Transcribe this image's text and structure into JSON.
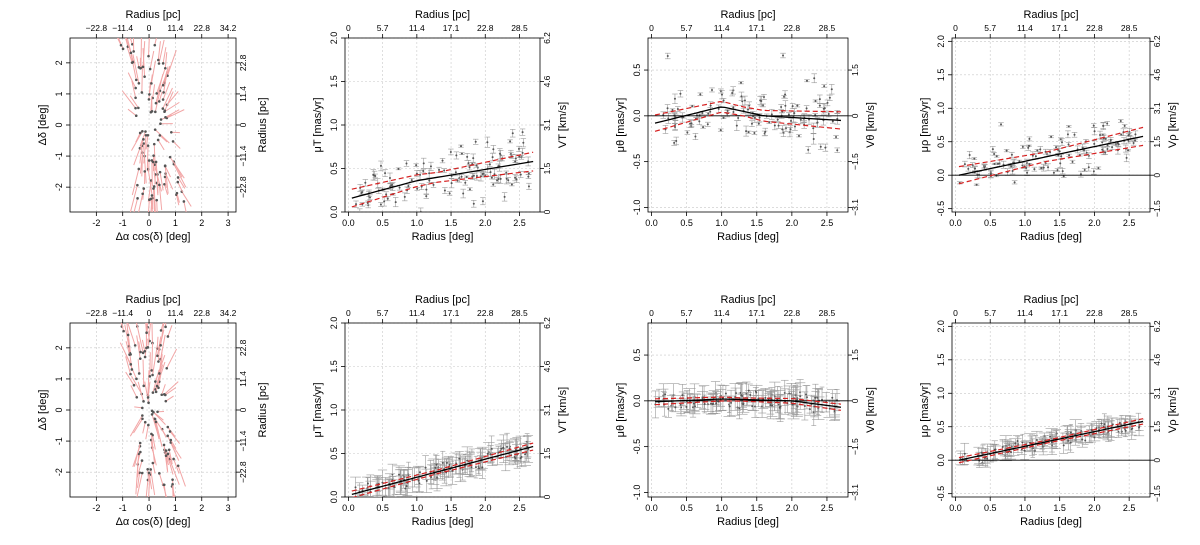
{
  "colors": {
    "arrow": "#f2a6a6",
    "point": "#555555",
    "err": "#999999",
    "fit": "#000000",
    "band": "#d62020",
    "grid": "#c8c8c8"
  },
  "axis_labels": {
    "radius_pc": "Radius [pc]",
    "radius_deg": "Radius [deg]",
    "dra": "Δα cos(δ) [deg]",
    "ddec": "Δδ [deg]",
    "mu_t": "μT [mas/yr]",
    "v_t": "VT [km/s]",
    "mu_theta": "μθ [mas/yr]",
    "v_theta": "Vθ [km/s]",
    "mu_rho": "μρ [mas/yr]",
    "v_rho": "Vρ [km/s]"
  },
  "chart_data": [
    {
      "id": "top-sky",
      "type": "scatter",
      "xlabel": "Δα cos(δ) [deg]",
      "ylabel": "Δδ [deg]",
      "x2label": "Radius [pc]",
      "y2label": "Radius [pc]",
      "xlim": [
        -3,
        3.3
      ],
      "ylim": [
        -2.8,
        2.8
      ],
      "xticks": [
        -2,
        -1,
        0,
        1,
        2,
        3
      ],
      "yticks": [
        -2,
        -1,
        0,
        1,
        2
      ],
      "x2ticks": [
        "−22.8",
        "−11.4",
        "0",
        "11.4",
        "22.8",
        "34.2"
      ],
      "y2ticks": [
        "−22.8",
        "−11.4",
        "0",
        "11.4",
        "22.8"
      ],
      "seed": 7
    },
    {
      "id": "top-mut",
      "type": "scatter",
      "xlabel": "Radius [deg]",
      "ylabel": "μT [mas/yr]",
      "x2label": "Radius [pc]",
      "y2label": "VT [km/s]",
      "xlim": [
        -0.05,
        2.8
      ],
      "ylim": [
        0,
        2.0
      ],
      "xticks": [
        0.0,
        0.5,
        1.0,
        1.5,
        2.0,
        2.5
      ],
      "yticks": [
        0.0,
        0.5,
        1.0,
        1.5,
        2.0
      ],
      "x2ticks": [
        "0",
        "5.7",
        "11.4",
        "17.1",
        "22.8",
        "28.5"
      ],
      "y2ticks": [
        "0",
        "1.5",
        "3.1",
        "4.6",
        "6.2"
      ],
      "fit": [
        [
          0.05,
          0.16
        ],
        [
          1.0,
          0.36
        ],
        [
          2.7,
          0.58
        ]
      ],
      "band": 0.08,
      "hline": null,
      "seed": 11,
      "model": "mut",
      "noisy": true
    },
    {
      "id": "top-mutheta",
      "type": "scatter",
      "xlabel": "Radius [deg]",
      "ylabel": "μθ [mas/yr]",
      "x2label": "Radius [pc]",
      "y2label": "Vθ [km/s]",
      "xlim": [
        -0.05,
        2.8
      ],
      "ylim": [
        -1.05,
        0.85
      ],
      "xticks": [
        0.0,
        0.5,
        1.0,
        1.5,
        2.0,
        2.5
      ],
      "yticks": [
        -1.0,
        -0.5,
        0.0,
        0.5
      ],
      "x2ticks": [
        "0",
        "5.7",
        "11.4",
        "17.1",
        "22.8",
        "28.5"
      ],
      "y2ticks": [
        "−3.1",
        "−1.5",
        "0",
        "1.5"
      ],
      "fit": [
        [
          0.05,
          -0.08
        ],
        [
          1.0,
          0.1
        ],
        [
          1.6,
          0.0
        ],
        [
          2.7,
          -0.05
        ]
      ],
      "band": 0.07,
      "hline": 0,
      "seed": 23,
      "model": "mutheta",
      "noisy": true
    },
    {
      "id": "top-murho",
      "type": "scatter",
      "xlabel": "Radius [deg]",
      "ylabel": "μρ [mas/yr]",
      "x2label": "Radius [pc]",
      "y2label": "Vρ [km/s]",
      "xlim": [
        -0.05,
        2.8
      ],
      "ylim": [
        -0.55,
        2.05
      ],
      "xticks": [
        0.0,
        0.5,
        1.0,
        1.5,
        2.0,
        2.5
      ],
      "yticks": [
        -0.5,
        0.0,
        0.5,
        1.0,
        1.5,
        2.0
      ],
      "x2ticks": [
        "0",
        "5.7",
        "11.4",
        "17.1",
        "22.8",
        "28.5"
      ],
      "y2ticks": [
        "−1.5",
        "0",
        "1.5",
        "3.1",
        "4.6",
        "6.2"
      ],
      "fit": [
        [
          0.05,
          0.0
        ],
        [
          2.7,
          0.58
        ]
      ],
      "band": 0.1,
      "hline": 0,
      "seed": 37,
      "model": "murho",
      "noisy": true
    },
    {
      "id": "bot-sky",
      "type": "scatter",
      "xlabel": "Δα cos(δ) [deg]",
      "ylabel": "Δδ [deg]",
      "x2label": "Radius [pc]",
      "y2label": "Radius [pc]",
      "xlim": [
        -3,
        3.3
      ],
      "ylim": [
        -2.8,
        2.8
      ],
      "xticks": [
        -2,
        -1,
        0,
        1,
        2,
        3
      ],
      "yticks": [
        -2,
        -1,
        0,
        1,
        2
      ],
      "x2ticks": [
        "−22.8",
        "−11.4",
        "0",
        "11.4",
        "22.8",
        "34.2"
      ],
      "y2ticks": [
        "−22.8",
        "−11.4",
        "0",
        "11.4",
        "22.8"
      ],
      "seed": 53
    },
    {
      "id": "bot-mut",
      "type": "scatter",
      "xlabel": "Radius [deg]",
      "ylabel": "μT [mas/yr]",
      "x2label": "Radius [pc]",
      "y2label": "VT [km/s]",
      "xlim": [
        -0.05,
        2.8
      ],
      "ylim": [
        0,
        2.0
      ],
      "xticks": [
        0.0,
        0.5,
        1.0,
        1.5,
        2.0,
        2.5
      ],
      "yticks": [
        0.0,
        0.5,
        1.0,
        1.5,
        2.0
      ],
      "x2ticks": [
        "0",
        "5.7",
        "11.4",
        "17.1",
        "22.8",
        "28.5"
      ],
      "y2ticks": [
        "0",
        "1.5",
        "3.1",
        "4.6",
        "6.2"
      ],
      "fit": [
        [
          0.05,
          0.03
        ],
        [
          2.7,
          0.58
        ]
      ],
      "band": 0.03,
      "hline": null,
      "seed": 61,
      "model": "murho",
      "noisy": false
    },
    {
      "id": "bot-mutheta",
      "type": "scatter",
      "xlabel": "Radius [deg]",
      "ylabel": "μθ [mas/yr]",
      "x2label": "Radius [pc]",
      "y2label": "Vθ [km/s]",
      "xlim": [
        -0.05,
        2.8
      ],
      "ylim": [
        -1.05,
        0.85
      ],
      "xticks": [
        0.0,
        0.5,
        1.0,
        1.5,
        2.0,
        2.5
      ],
      "yticks": [
        -1.0,
        -0.5,
        0.0,
        0.5
      ],
      "x2ticks": [
        "0",
        "5.7",
        "11.4",
        "17.1",
        "22.8",
        "28.5"
      ],
      "y2ticks": [
        "−3.1",
        "−1.5",
        "0",
        "1.5"
      ],
      "fit": [
        [
          0.05,
          -0.01
        ],
        [
          1.0,
          0.02
        ],
        [
          2.0,
          0.0
        ],
        [
          2.7,
          -0.07
        ]
      ],
      "band": 0.025,
      "hline": 0,
      "seed": 71,
      "model": "mutheta",
      "noisy": false
    },
    {
      "id": "bot-murho",
      "type": "scatter",
      "xlabel": "Radius [deg]",
      "ylabel": "μρ [mas/yr]",
      "x2label": "Radius [pc]",
      "y2label": "Vρ [km/s]",
      "xlim": [
        -0.05,
        2.8
      ],
      "ylim": [
        -0.55,
        2.05
      ],
      "xticks": [
        0.0,
        0.5,
        1.0,
        1.5,
        2.0,
        2.5
      ],
      "yticks": [
        -0.5,
        0.0,
        0.5,
        1.0,
        1.5,
        2.0
      ],
      "x2ticks": [
        "0",
        "5.7",
        "11.4",
        "17.1",
        "22.8",
        "28.5"
      ],
      "y2ticks": [
        "−1.5",
        "0",
        "1.5",
        "3.1",
        "4.6",
        "6.2"
      ],
      "fit": [
        [
          0.05,
          0.0
        ],
        [
          2.7,
          0.58
        ]
      ],
      "band": 0.03,
      "hline": 0,
      "seed": 83,
      "model": "murho",
      "noisy": false
    }
  ]
}
